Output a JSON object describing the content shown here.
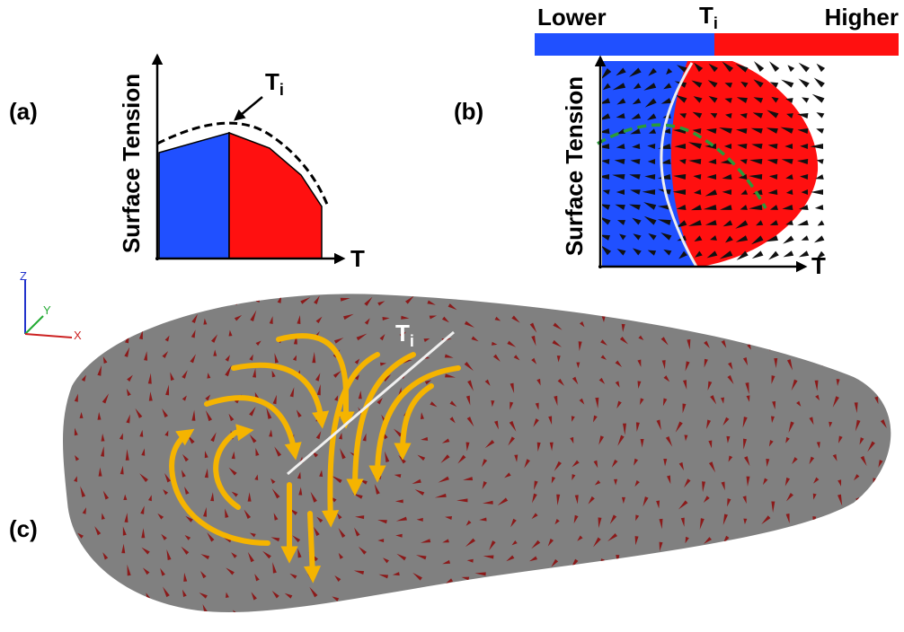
{
  "panel_a": {
    "label": "(a)",
    "y_axis": "Surface Tension",
    "x_axis": "T",
    "marker": {
      "base": "T",
      "sub": "i"
    }
  },
  "panel_b": {
    "label": "(b)",
    "y_axis": "Surface Tension",
    "x_axis": "T",
    "colorbar": {
      "low": "Lower",
      "high": "Higher",
      "mid": {
        "base": "T",
        "sub": "i"
      }
    }
  },
  "panel_c": {
    "label": "(c)",
    "marker": {
      "base": "T",
      "sub": "i"
    },
    "triad": {
      "z": "Z",
      "y": "Y",
      "x": "X"
    }
  }
}
